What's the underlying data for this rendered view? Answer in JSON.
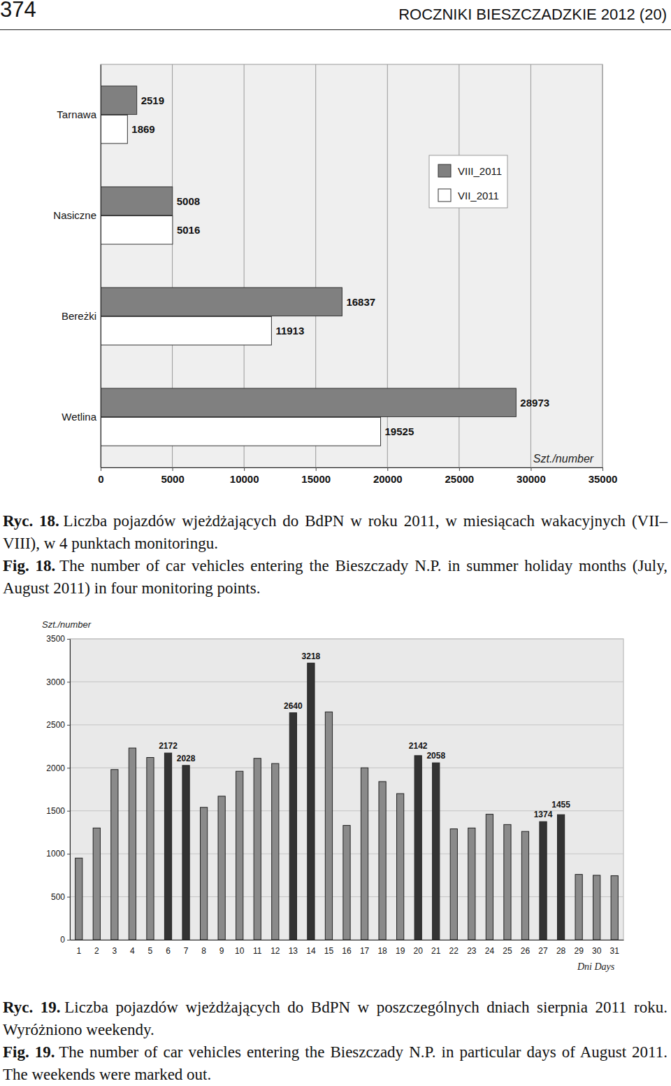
{
  "header": {
    "page_number": "374",
    "journal": "ROCZNIKI BIESZCZADZKIE 2012 (20)"
  },
  "chart_data": [
    {
      "type": "bar",
      "orientation": "horizontal",
      "categories": [
        "Tarnawa",
        "Nasiczne",
        "Bereżki",
        "Wetlina"
      ],
      "series": [
        {
          "name": "VIII_2011",
          "color": "#808080",
          "values": [
            2519,
            5008,
            16837,
            28973
          ]
        },
        {
          "name": "VII_2011",
          "color": "#ffffff",
          "values": [
            1869,
            5016,
            11913,
            19525
          ]
        }
      ],
      "xlim": [
        0,
        35000
      ],
      "xticks": [
        0,
        5000,
        10000,
        15000,
        20000,
        25000,
        30000,
        35000
      ],
      "x_label": "Szt./number",
      "grid": true,
      "legend": "upper right",
      "data_labels": true
    },
    {
      "type": "bar",
      "categories": [
        "1",
        "2",
        "3",
        "4",
        "5",
        "6",
        "7",
        "8",
        "9",
        "10",
        "11",
        "12",
        "13",
        "14",
        "15",
        "16",
        "17",
        "18",
        "19",
        "20",
        "21",
        "22",
        "23",
        "24",
        "25",
        "26",
        "27",
        "28",
        "29",
        "30",
        "31"
      ],
      "values": [
        950,
        1300,
        1980,
        2230,
        2120,
        2172,
        2028,
        1540,
        1670,
        1960,
        2110,
        2050,
        2640,
        3218,
        2650,
        1330,
        2000,
        1840,
        1700,
        2142,
        2058,
        1290,
        1300,
        1460,
        1340,
        1260,
        1374,
        1455,
        760,
        750,
        745
      ],
      "colors": [
        "#8a8a8a",
        "#8a8a8a",
        "#8a8a8a",
        "#8a8a8a",
        "#8a8a8a",
        "#333333",
        "#333333",
        "#8a8a8a",
        "#8a8a8a",
        "#8a8a8a",
        "#8a8a8a",
        "#8a8a8a",
        "#333333",
        "#333333",
        "#8a8a8a",
        "#8a8a8a",
        "#8a8a8a",
        "#8a8a8a",
        "#8a8a8a",
        "#333333",
        "#333333",
        "#8a8a8a",
        "#8a8a8a",
        "#8a8a8a",
        "#8a8a8a",
        "#8a8a8a",
        "#333333",
        "#333333",
        "#8a8a8a",
        "#8a8a8a",
        "#8a8a8a"
      ],
      "value_labels": [
        null,
        null,
        null,
        null,
        null,
        "2172",
        "2028",
        null,
        null,
        null,
        null,
        null,
        "2640",
        "3218",
        null,
        null,
        null,
        null,
        null,
        "2142",
        "2058",
        null,
        null,
        null,
        null,
        null,
        "1374",
        "1455",
        null,
        null,
        null
      ],
      "data_labels": true,
      "ylim": [
        0,
        3500
      ],
      "yticks": [
        0,
        500,
        1000,
        1500,
        2000,
        2500,
        3000,
        3500
      ],
      "y_label": "Szt./number",
      "x_label": "Dni Days",
      "grid": true
    }
  ],
  "captions": [
    {
      "label_pl": "Ryc. 18.",
      "text_pl": "Liczba pojazdów wjeżdżających do BdPN w roku 2011, w miesiącach wakacyjnych (VII–VIII), w 4 punktach monitoringu.",
      "label_en": "Fig. 18.",
      "text_en": "The number of car vehicles entering the Bieszczady N.P. in summer holiday months (July, August 2011) in four monitoring points."
    },
    {
      "label_pl": "Ryc. 19.",
      "text_pl": "Liczba pojazdów wjeżdżających do BdPN w poszczególnych dniach sierpnia 2011 roku. Wyróżniono weekendy.",
      "label_en": "Fig. 19.",
      "text_en": "The number of car vehicles entering the Bieszczady N.P. in particular days of August 2011. The weekends were marked out."
    }
  ]
}
